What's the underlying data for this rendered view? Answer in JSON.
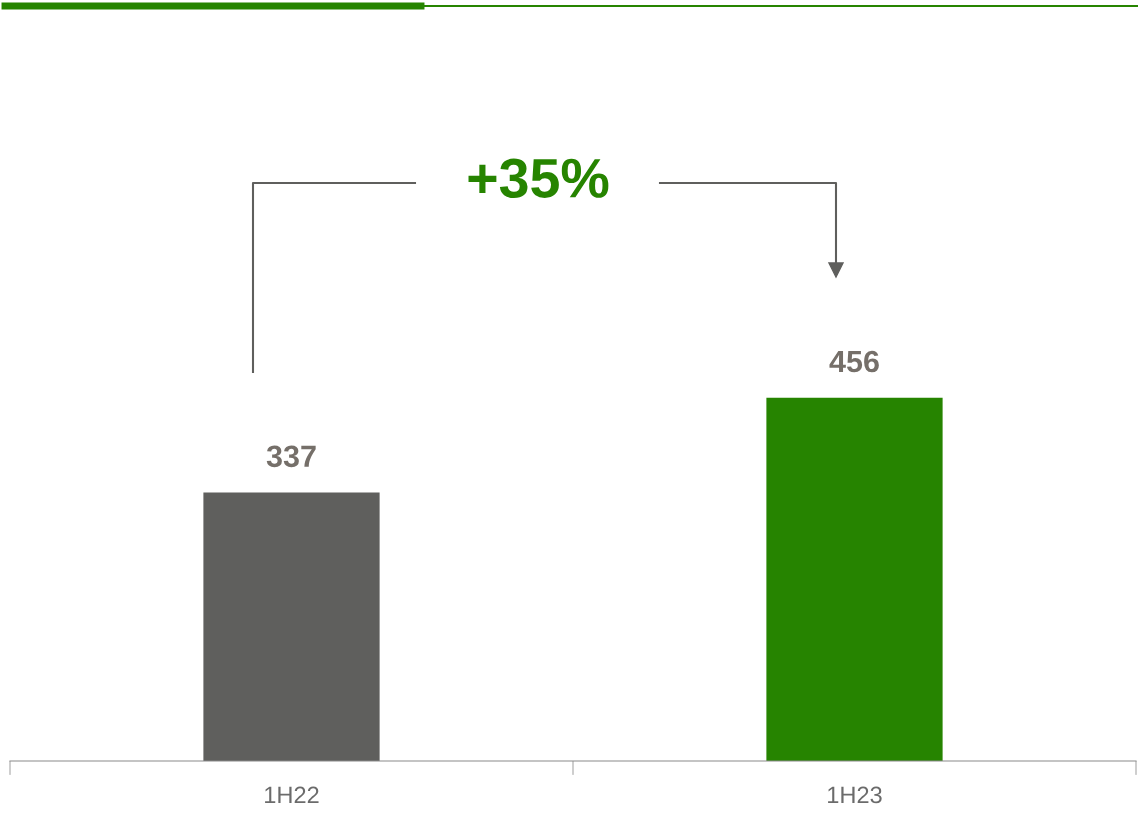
{
  "chart_data": {
    "type": "bar",
    "categories": [
      "1H22",
      "1H23"
    ],
    "values": [
      337,
      456
    ],
    "colors": [
      "#5f5f5d",
      "#268400"
    ],
    "data_labels": true,
    "tick_labels": "x",
    "grid": false,
    "annotations": [
      "+35%"
    ]
  }
}
